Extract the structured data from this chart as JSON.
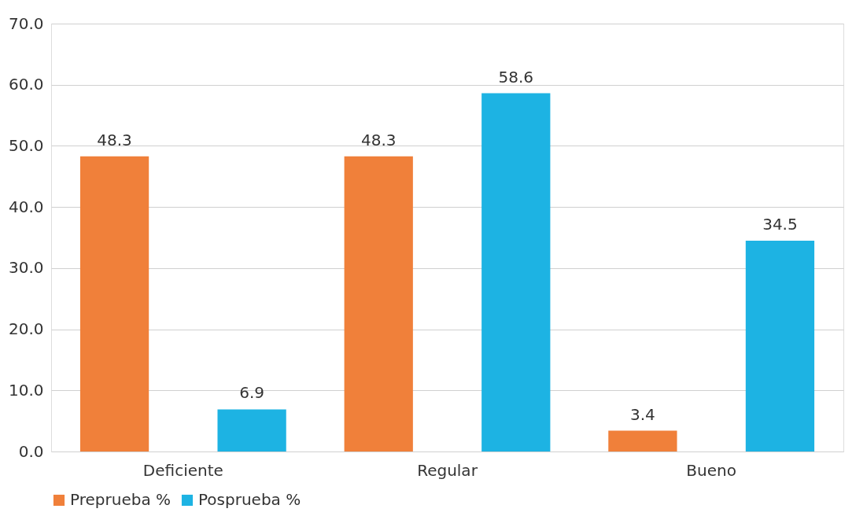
{
  "chart_data": {
    "type": "bar",
    "categories": [
      "Deficiente",
      "Regular",
      "Bueno"
    ],
    "series": [
      {
        "name": "Preprueba %",
        "color": "#f0803a",
        "values": [
          48.3,
          48.3,
          3.4
        ]
      },
      {
        "name": "Posprueba %",
        "color": "#1db3e3",
        "values": [
          6.9,
          58.6,
          34.5
        ]
      }
    ],
    "ylim": [
      0,
      70
    ],
    "yticks": [
      {
        "value": 0,
        "label": "0.0"
      },
      {
        "value": 10,
        "label": "10.0"
      },
      {
        "value": 20,
        "label": "20.0"
      },
      {
        "value": 30,
        "label": "30.0"
      },
      {
        "value": 40,
        "label": "40.0"
      },
      {
        "value": 50,
        "label": "50.0"
      },
      {
        "value": 60,
        "label": "60.0"
      },
      {
        "value": 70,
        "label": "70.0"
      }
    ],
    "grid": "y",
    "legend": "bottom",
    "data_labels": true
  }
}
